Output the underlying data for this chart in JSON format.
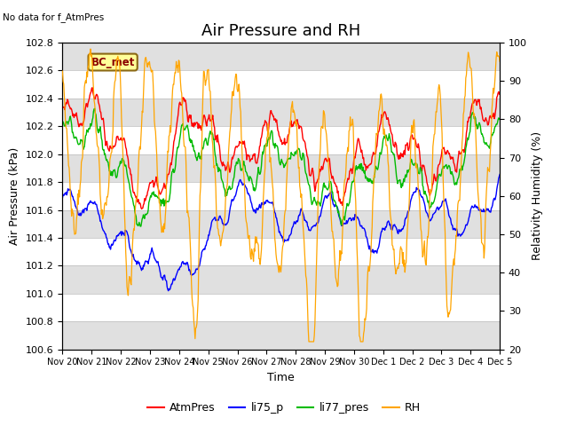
{
  "title": "Air Pressure and RH",
  "no_data_text": "No data for f_AtmPres",
  "bc_met_label": "BC_met",
  "ylabel_left": "Air Pressure (kPa)",
  "ylabel_right": "Relativity Humidity (%)",
  "xlabel": "Time",
  "ylim_left": [
    100.6,
    102.8
  ],
  "ylim_right": [
    20,
    100
  ],
  "yticks_left": [
    100.6,
    100.8,
    101.0,
    101.2,
    101.4,
    101.6,
    101.8,
    102.0,
    102.2,
    102.4,
    102.6,
    102.8
  ],
  "yticks_right": [
    20,
    30,
    40,
    50,
    60,
    70,
    80,
    90,
    100
  ],
  "xtick_labels": [
    "Nov 20",
    "Nov 21",
    "Nov 22",
    "Nov 23",
    "Nov 24",
    "Nov 25",
    "Nov 26",
    "Nov 27",
    "Nov 28",
    "Nov 29",
    "Nov 30",
    "Dec 1",
    "Dec 2",
    "Dec 3",
    "Dec 4",
    "Dec 5"
  ],
  "colors": {
    "AtmPres": "#FF0000",
    "li75_p": "#0000FF",
    "li77_pres": "#00BB00",
    "RH": "#FFA500"
  },
  "band_color": "#E0E0E0",
  "title_fontsize": 13,
  "label_fontsize": 9,
  "tick_fontsize": 8,
  "legend_fontsize": 9
}
